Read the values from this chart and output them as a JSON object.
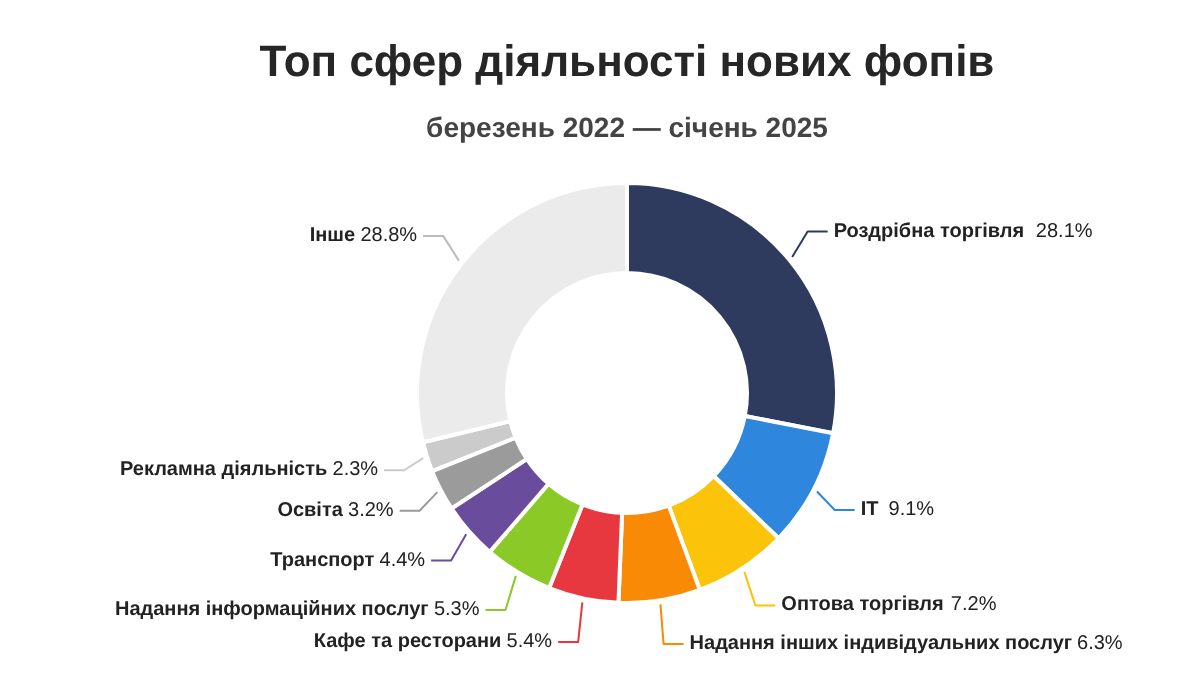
{
  "chart_data": {
    "type": "donut",
    "title": "Топ сфер діяльності нових фопів",
    "subtitle": "березень 2022 — січень 2025",
    "categories": [
      "Роздрібна торгівля",
      "IT",
      "Оптова торгівля",
      "Надання інших індивідуальних послуг",
      "Кафе та ресторани",
      "Надання інформаційних послуг",
      "Транспорт",
      "Освіта",
      "Рекламна діяльність",
      "Інше"
    ],
    "values": [
      28.1,
      9.1,
      7.2,
      6.3,
      5.4,
      5.3,
      4.4,
      3.2,
      2.3,
      28.8
    ],
    "value_labels": [
      "28.1%",
      "9.1%",
      "7.2%",
      "6.3%",
      "5.4%",
      "5.3%",
      "4.4%",
      "3.2%",
      "2.3%",
      "28.8%"
    ],
    "colors": [
      "#2e3b5e",
      "#2f86dd",
      "#fcc30b",
      "#f98a05",
      "#e8383f",
      "#8ac926",
      "#6a4c9c",
      "#9b9b9b",
      "#cbcbcb",
      "#ebebeb"
    ]
  }
}
